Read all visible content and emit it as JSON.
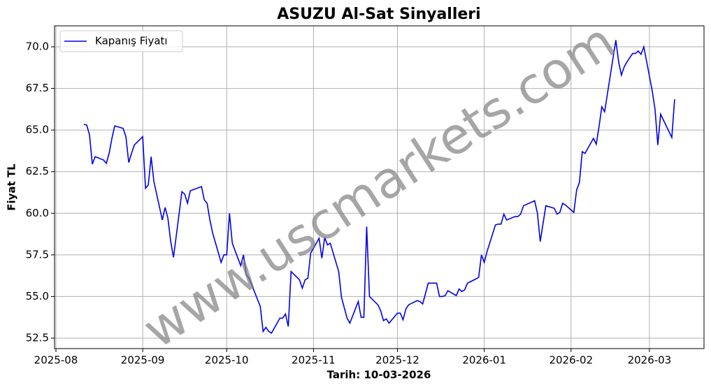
{
  "chart_data": {
    "type": "line",
    "title": "ASUZU Al-Sat Sinyalleri",
    "xlabel": "Tarih: 10-03-2026",
    "ylabel": "Fiyat TL",
    "watermark": "www.uscmarkets.com",
    "x": [
      20311,
      20312,
      20313,
      20314,
      20315,
      20318,
      20319,
      20320,
      20321,
      20322,
      20325,
      20326,
      20327,
      20328,
      20329,
      20332,
      20333,
      20334,
      20335,
      20336,
      20339,
      20340,
      20341,
      20342,
      20343,
      20346,
      20347,
      20348,
      20349,
      20353,
      20354,
      20355,
      20356,
      20357,
      20360,
      20361,
      20362,
      20363,
      20364,
      20367,
      20368,
      20369,
      20370,
      20374,
      20375,
      20376,
      20377,
      20378,
      20381,
      20382,
      20383,
      20384,
      20385,
      20388,
      20389,
      20390,
      20391,
      20392,
      20395,
      20396,
      20397,
      20398,
      20399,
      20402,
      20403,
      20405,
      20406,
      20409,
      20410,
      20411,
      20412,
      20413,
      20416,
      20417,
      20418,
      20419,
      20420,
      20423,
      20424,
      20425,
      20426,
      20427,
      20430,
      20431,
      20432,
      20434,
      20437,
      20438,
      20439,
      20440,
      20441,
      20444,
      20445,
      20446,
      20447,
      20448,
      20451,
      20452,
      20453,
      20454,
      20455,
      20458,
      20459,
      20460,
      20461,
      20462,
      20465,
      20466,
      20467,
      20468,
      20472,
      20473,
      20474,
      20476,
      20479,
      20480,
      20481,
      20482,
      20483,
      20486,
      20487,
      20488,
      20489,
      20490,
      20493,
      20494,
      20495,
      20496,
      20497,
      20501,
      20502,
      20503,
      20504,
      20505,
      20507,
      20508,
      20509,
      20510,
      20511,
      20514,
      20515,
      20516,
      20517,
      20521,
      20522
    ],
    "series": [
      {
        "name": "Kapanış Fiyatı",
        "color": "#0000e6",
        "values": [
          65.34,
          65.3,
          64.7,
          62.95,
          63.4,
          63.2,
          63.0,
          63.6,
          64.5,
          65.25,
          65.1,
          64.6,
          63.05,
          63.6,
          64.1,
          64.6,
          61.5,
          61.7,
          63.4,
          61.9,
          59.6,
          60.35,
          59.7,
          58.3,
          57.35,
          61.3,
          61.15,
          60.6,
          61.35,
          61.6,
          60.8,
          60.6,
          59.6,
          58.8,
          57.05,
          57.5,
          57.5,
          60.0,
          58.2,
          56.85,
          57.5,
          56.3,
          56.1,
          54.4,
          52.9,
          53.15,
          52.9,
          52.8,
          53.7,
          53.7,
          53.95,
          53.2,
          56.5,
          56.0,
          55.5,
          56.0,
          56.1,
          57.6,
          58.5,
          57.3,
          58.55,
          58.1,
          58.2,
          56.5,
          54.95,
          53.7,
          53.4,
          54.7,
          53.75,
          53.75,
          59.2,
          55.0,
          54.5,
          54.15,
          53.55,
          53.65,
          53.4,
          54.0,
          54.0,
          53.6,
          54.25,
          54.5,
          54.75,
          54.7,
          54.55,
          55.8,
          55.8,
          55.0,
          55.0,
          55.05,
          55.35,
          55.05,
          55.45,
          55.3,
          55.4,
          55.8,
          56.05,
          56.15,
          57.5,
          57.05,
          57.7,
          59.3,
          59.35,
          59.35,
          59.95,
          59.6,
          59.8,
          59.8,
          59.95,
          60.45,
          60.75,
          60.0,
          58.3,
          60.45,
          60.3,
          59.95,
          60.05,
          60.6,
          60.5,
          60.05,
          61.4,
          61.85,
          63.7,
          63.6,
          64.5,
          64.15,
          65.2,
          66.4,
          66.1,
          70.4,
          69.1,
          68.3,
          68.8,
          69.1,
          69.6,
          69.6,
          69.75,
          69.55,
          70.0,
          67.35,
          66.25,
          64.1,
          65.95,
          64.55,
          66.85
        ]
      }
    ],
    "xlim": [
      20300.5,
      20532.5
    ],
    "xticks": [
      {
        "value": 20301,
        "label": "2025-08"
      },
      {
        "value": 20332,
        "label": "2025-09"
      },
      {
        "value": 20362,
        "label": "2025-10"
      },
      {
        "value": 20393,
        "label": "2025-11"
      },
      {
        "value": 20423,
        "label": "2025-12"
      },
      {
        "value": 20454,
        "label": "2026-01"
      },
      {
        "value": 20485,
        "label": "2026-02"
      },
      {
        "value": 20513,
        "label": "2026-03"
      }
    ],
    "ylim": [
      51.87,
      71.26
    ],
    "yticks": [
      52.5,
      {
        "value": 55,
        "label": "55.0"
      },
      57.5,
      {
        "value": 60,
        "label": "60.0"
      },
      62.5,
      {
        "value": 65,
        "label": "65.0"
      },
      67.5,
      {
        "value": 70,
        "label": "70.0"
      }
    ],
    "grid": true,
    "legend": "upper left"
  }
}
